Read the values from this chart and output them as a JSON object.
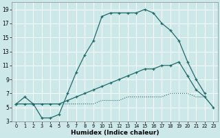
{
  "bg_color": "#cce8e8",
  "grid_color": "#ffffff",
  "line_color": "#1a6b6b",
  "xlabel": "Humidex (Indice chaleur)",
  "xlim": [
    -0.5,
    23.5
  ],
  "ylim": [
    3,
    20
  ],
  "xticks": [
    0,
    1,
    2,
    3,
    4,
    5,
    6,
    7,
    8,
    9,
    10,
    11,
    12,
    13,
    14,
    15,
    16,
    17,
    18,
    19,
    20,
    21,
    22,
    23
  ],
  "yticks": [
    3,
    5,
    7,
    9,
    11,
    13,
    15,
    17,
    19
  ],
  "line1_x": [
    0,
    1,
    2,
    3,
    4,
    5,
    6,
    7,
    8,
    9,
    10,
    11,
    12,
    13,
    14,
    15,
    16,
    17,
    18,
    19,
    20,
    21,
    22
  ],
  "line1_y": [
    5.5,
    6.5,
    5.5,
    3.5,
    3.5,
    4.0,
    7.0,
    10.0,
    12.5,
    14.5,
    18.0,
    18.5,
    18.5,
    18.5,
    18.5,
    19.0,
    18.5,
    17.0,
    16.0,
    14.5,
    11.5,
    9.0,
    7.0
  ],
  "line2_x": [
    0,
    1,
    2,
    3,
    4,
    5,
    6,
    7,
    8,
    9,
    10,
    11,
    12,
    13,
    14,
    15,
    16,
    17,
    18,
    19,
    20,
    21,
    22,
    23
  ],
  "line2_y": [
    5.5,
    5.5,
    5.5,
    5.5,
    5.5,
    5.5,
    6.0,
    6.5,
    7.0,
    7.5,
    8.0,
    8.5,
    9.0,
    9.5,
    10.0,
    10.5,
    10.5,
    11.0,
    11.0,
    11.5,
    9.5,
    7.5,
    6.5,
    5.0
  ],
  "line3_x": [
    0,
    1,
    2,
    3,
    4,
    5,
    6,
    7,
    8,
    9,
    10,
    11,
    12,
    13,
    14,
    15,
    16,
    17,
    18,
    19,
    20,
    21,
    22,
    23
  ],
  "line3_y": [
    5.5,
    5.5,
    5.5,
    5.5,
    5.5,
    5.5,
    5.5,
    5.5,
    5.5,
    5.5,
    6.0,
    6.0,
    6.0,
    6.5,
    6.5,
    6.5,
    6.5,
    6.5,
    7.0,
    7.0,
    7.0,
    6.5,
    6.5,
    5.0
  ]
}
